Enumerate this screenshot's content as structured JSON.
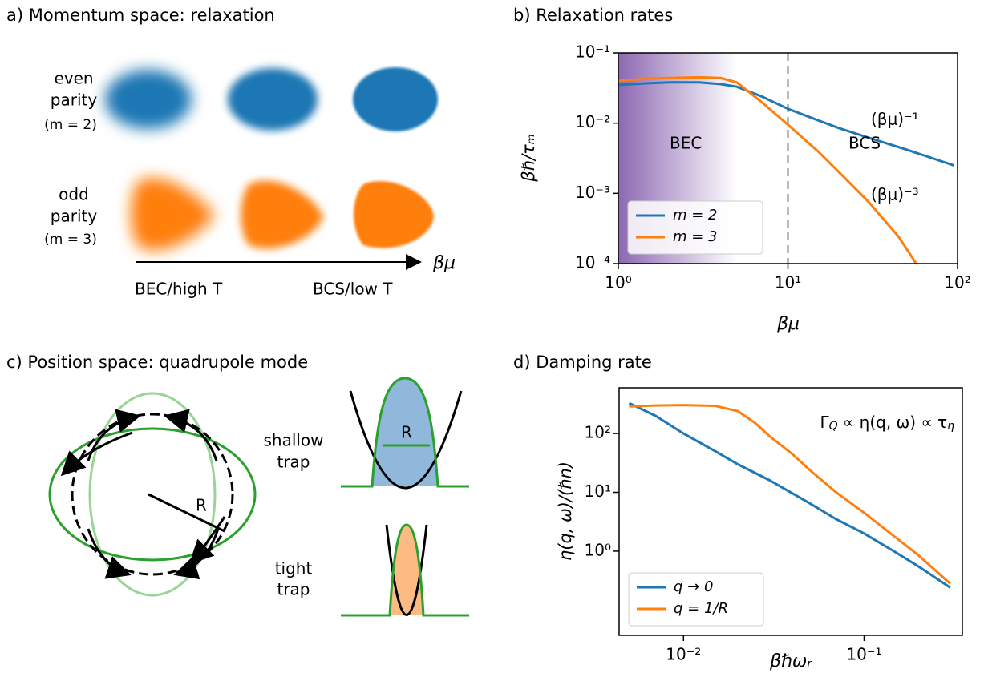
{
  "panel_a": {
    "title": "a) Momentum space: relaxation",
    "rows": [
      {
        "lines": [
          "even",
          "parity"
        ],
        "param": "(m = 2)"
      },
      {
        "lines": [
          "odd",
          "parity"
        ],
        "param": "(m = 3)"
      }
    ],
    "axis_label": "βμ",
    "left_label": "BEC/high T",
    "right_label": "BCS/low T"
  },
  "panel_c": {
    "title": "c) Position space: quadrupole mode",
    "radius_label": "R",
    "traps": [
      {
        "lines": [
          "shallow",
          "trap"
        ],
        "label": "R"
      },
      {
        "lines": [
          "tight",
          "trap"
        ]
      }
    ]
  },
  "chart_data": [
    {
      "type": "line",
      "title": "b) Relaxation rates",
      "xlabel": "βμ",
      "ylabel": "βℏ/τₘ",
      "xscale": "log",
      "yscale": "log",
      "xlim": [
        1,
        100
      ],
      "ylim": [
        0.0001,
        0.1
      ],
      "xticks": [
        {
          "value": 1,
          "label": "10⁰"
        },
        {
          "value": 10,
          "label": "10¹"
        },
        {
          "value": 100,
          "label": "10²"
        }
      ],
      "yticks": [
        {
          "value": 0.0001,
          "label": "10⁻⁴"
        },
        {
          "value": 0.001,
          "label": "10⁻³"
        },
        {
          "value": 0.01,
          "label": "10⁻²"
        },
        {
          "value": 0.1,
          "label": "10⁻¹"
        }
      ],
      "shade": [
        1,
        5
      ],
      "vline": 10,
      "legend": "lower left",
      "annotations": [
        "BEC",
        "BCS",
        "(βμ)⁻¹",
        "(βμ)⁻³"
      ],
      "series": [
        {
          "name": "m = 2",
          "color": "#1f77b4",
          "x": [
            1,
            1.5,
            2,
            3,
            4,
            5,
            7,
            10,
            15,
            20,
            30,
            50,
            70,
            95
          ],
          "values": [
            0.035,
            0.037,
            0.038,
            0.038,
            0.036,
            0.033,
            0.024,
            0.016,
            0.011,
            0.0085,
            0.0062,
            0.0042,
            0.0032,
            0.0025
          ]
        },
        {
          "name": "m = 3",
          "color": "#ff7f0e",
          "x": [
            1,
            1.5,
            2,
            3,
            4,
            5,
            7,
            10,
            15,
            20,
            30,
            45,
            57
          ],
          "values": [
            0.04,
            0.043,
            0.044,
            0.045,
            0.044,
            0.038,
            0.02,
            0.0095,
            0.004,
            0.002,
            0.00075,
            0.00024,
            0.0001
          ]
        }
      ]
    },
    {
      "type": "line",
      "title": "d) Damping rate",
      "xlabel": "βℏωᵣ",
      "ylabel": "η(q, ω)/(ℏn)",
      "xscale": "log",
      "yscale": "log",
      "xlim": [
        0.0044,
        0.35
      ],
      "ylim": [
        0.037,
        600
      ],
      "xticks": [
        {
          "value": 0.01,
          "label": "10⁻²"
        },
        {
          "value": 0.1,
          "label": "10⁻¹"
        }
      ],
      "yticks": [
        {
          "value": 1,
          "label": "10⁰"
        },
        {
          "value": 10,
          "label": "10¹"
        },
        {
          "value": 100,
          "label": "10²"
        }
      ],
      "legend": "lower left",
      "annotation_parts": [
        "Γ",
        "Q",
        " ∝ η(q, ω) ∝ τ",
        "η"
      ],
      "series": [
        {
          "name": "q → 0",
          "color": "#1f77b4",
          "x": [
            0.005,
            0.007,
            0.01,
            0.015,
            0.02,
            0.03,
            0.05,
            0.07,
            0.1,
            0.15,
            0.2,
            0.3
          ],
          "values": [
            330,
            200,
            100,
            50,
            30,
            16,
            6.5,
            3.5,
            2,
            0.95,
            0.55,
            0.24
          ]
        },
        {
          "name": "q = 1/R",
          "color": "#ff7f0e",
          "x": [
            0.005,
            0.007,
            0.01,
            0.015,
            0.02,
            0.025,
            0.03,
            0.04,
            0.05,
            0.07,
            0.1,
            0.15,
            0.2,
            0.3
          ],
          "values": [
            290,
            300,
            305,
            295,
            240,
            150,
            90,
            45,
            24,
            10,
            4.5,
            1.7,
            0.85,
            0.28
          ]
        }
      ]
    }
  ]
}
